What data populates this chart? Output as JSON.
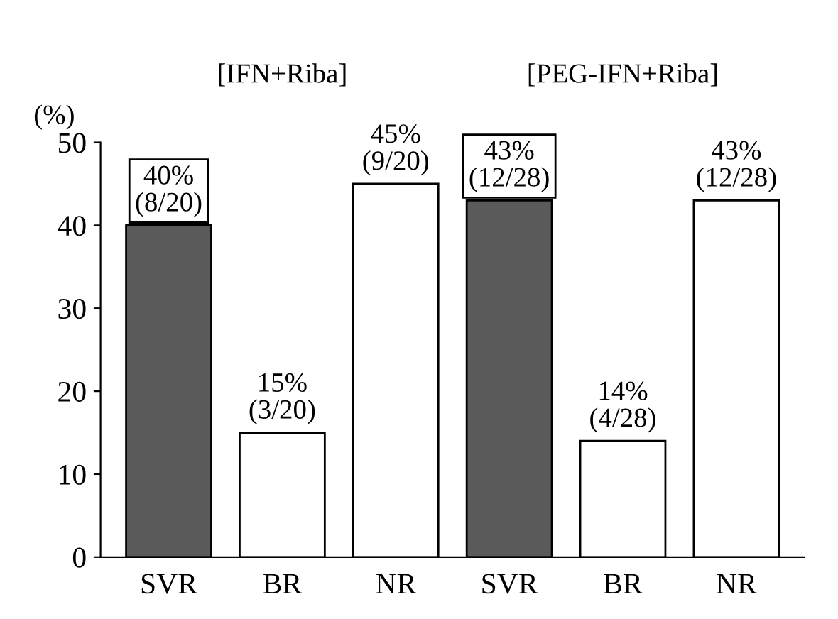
{
  "chart_data": {
    "type": "bar",
    "categories": [
      "SVR",
      "BR",
      "NR",
      "SVR",
      "BR",
      "NR"
    ],
    "values": [
      40,
      15,
      45,
      43,
      14,
      43
    ],
    "colors": [
      "#5a5a5a",
      "#ffffff",
      "#ffffff",
      "#5a5a5a",
      "#ffffff",
      "#ffffff"
    ],
    "value_labels": [
      "40%\n(8/20)",
      "15%\n(3/20)",
      "45%\n(9/20)",
      "43%\n(12/28)",
      "14%\n(4/28)",
      "43%\n(12/28)"
    ],
    "ylabel": "(%)",
    "ylim": [
      0,
      50
    ],
    "yticks": [
      0,
      10,
      20,
      30,
      40,
      50
    ],
    "annotations": [
      "[IFN+Riba]",
      "[PEG-IFN+Riba]"
    ],
    "grid": false,
    "legend": false
  }
}
